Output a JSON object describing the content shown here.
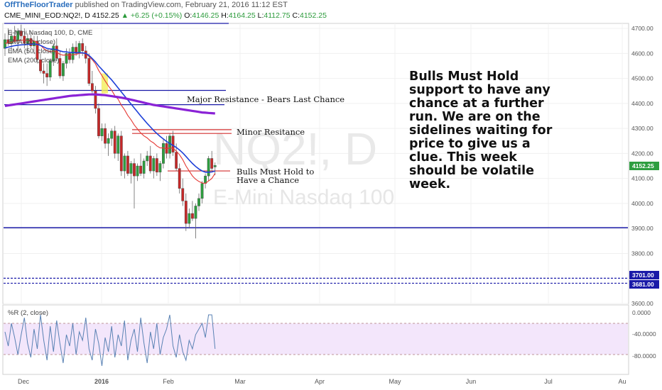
{
  "header": {
    "author": "OffTheFloorTrader",
    "published_text": "published on TradingView.com, February 21, 2016 11:12 EST"
  },
  "symbol_bar": {
    "symbol": "CME_MINI_EOD:NQ2!, D",
    "last": "4152.25",
    "change": "+6.25 (+0.15%)",
    "open_label": "O:",
    "open": "4146.25",
    "high_label": "H:",
    "high": "4164.25",
    "low_label": "L:",
    "low": "4112.75",
    "close_label": "C:",
    "close": "4152.25"
  },
  "legend": {
    "title": "E-Mini Nasdaq 100, D, CME",
    "items": [
      "EMA (20, close)",
      "EMA (50, close)",
      "EMA (200, close)"
    ]
  },
  "watermark": {
    "symbol": "NQ2!, D",
    "name": "E-Mini Nasdaq 100"
  },
  "annotations": {
    "major_resistance": "Major Resistance - Bears  Last Chance",
    "minor_resistance": "Minor Resitance",
    "bulls_line1": "Bulls Must Hold to",
    "bulls_line2": "Have a Chance",
    "big_text": [
      "Bulls Must Hold",
      "support to have any",
      "chance at a further",
      "run.  We are on the",
      "sidelines waiting for",
      "price to give us a",
      "clue.  This week",
      "should be volatile",
      "week."
    ]
  },
  "price_tags": {
    "last": "4152.25",
    "level1": "3701.00",
    "level2": "3681.00"
  },
  "indicator": {
    "label": "%R (2, close)",
    "ticks": [
      "0.0000",
      "-40.0000",
      "-80.0000"
    ]
  },
  "colors": {
    "bull": "#2e9e40",
    "bear": "#c62828",
    "ema20": "#e53935",
    "ema50": "#1e40d8",
    "ema200": "#8a22d6",
    "hline": "#1a1aa8",
    "resist": "#d32f2f",
    "wr_fill": "#f3e6fb",
    "wr_line": "#5a82b4"
  },
  "chart_data": {
    "type": "candlestick",
    "y_ticks": [
      "4700.00",
      "4600.00",
      "4500.00",
      "4400.00",
      "4300.00",
      "4200.00",
      "4100.00",
      "4000.00",
      "3900.00",
      "3800.00",
      "3600.00"
    ],
    "y_tick_values": [
      4700,
      4600,
      4500,
      4400,
      4300,
      4200,
      4100,
      4000,
      3900,
      3800,
      3600
    ],
    "x_ticks": [
      "Dec",
      "2016",
      "Feb",
      "Mar",
      "Apr",
      "May",
      "Jun",
      "Jul",
      "Au"
    ],
    "ylim": [
      3600,
      4720
    ],
    "n_slots": 274,
    "candles": [
      {
        "o": 4620,
        "h": 4680,
        "l": 4590,
        "c": 4655
      },
      {
        "o": 4655,
        "h": 4700,
        "l": 4630,
        "c": 4640
      },
      {
        "o": 4640,
        "h": 4690,
        "l": 4600,
        "c": 4670
      },
      {
        "o": 4670,
        "h": 4710,
        "l": 4640,
        "c": 4650
      },
      {
        "o": 4650,
        "h": 4700,
        "l": 4610,
        "c": 4690
      },
      {
        "o": 4690,
        "h": 4715,
        "l": 4650,
        "c": 4670
      },
      {
        "o": 4670,
        "h": 4700,
        "l": 4620,
        "c": 4640
      },
      {
        "o": 4640,
        "h": 4680,
        "l": 4600,
        "c": 4660
      },
      {
        "o": 4660,
        "h": 4690,
        "l": 4620,
        "c": 4630
      },
      {
        "o": 4630,
        "h": 4670,
        "l": 4600,
        "c": 4650
      },
      {
        "o": 4650,
        "h": 4670,
        "l": 4560,
        "c": 4575
      },
      {
        "o": 4575,
        "h": 4600,
        "l": 4520,
        "c": 4530
      },
      {
        "o": 4530,
        "h": 4560,
        "l": 4480,
        "c": 4520
      },
      {
        "o": 4520,
        "h": 4560,
        "l": 4470,
        "c": 4505
      },
      {
        "o": 4505,
        "h": 4580,
        "l": 4490,
        "c": 4570
      },
      {
        "o": 4570,
        "h": 4640,
        "l": 4550,
        "c": 4630
      },
      {
        "o": 4630,
        "h": 4660,
        "l": 4570,
        "c": 4580
      },
      {
        "o": 4580,
        "h": 4610,
        "l": 4500,
        "c": 4510
      },
      {
        "o": 4510,
        "h": 4570,
        "l": 4490,
        "c": 4560
      },
      {
        "o": 4560,
        "h": 4620,
        "l": 4540,
        "c": 4600
      },
      {
        "o": 4600,
        "h": 4620,
        "l": 4560,
        "c": 4575
      },
      {
        "o": 4575,
        "h": 4640,
        "l": 4560,
        "c": 4625
      },
      {
        "o": 4625,
        "h": 4650,
        "l": 4590,
        "c": 4600
      },
      {
        "o": 4600,
        "h": 4650,
        "l": 4580,
        "c": 4640
      },
      {
        "o": 4640,
        "h": 4660,
        "l": 4590,
        "c": 4610
      },
      {
        "o": 4610,
        "h": 4630,
        "l": 4560,
        "c": 4580
      },
      {
        "o": 4580,
        "h": 4600,
        "l": 4470,
        "c": 4480
      },
      {
        "o": 4480,
        "h": 4530,
        "l": 4440,
        "c": 4450
      },
      {
        "o": 4450,
        "h": 4470,
        "l": 4360,
        "c": 4380
      },
      {
        "o": 4380,
        "h": 4400,
        "l": 4260,
        "c": 4270
      },
      {
        "o": 4270,
        "h": 4320,
        "l": 4250,
        "c": 4300
      },
      {
        "o": 4300,
        "h": 4320,
        "l": 4220,
        "c": 4240
      },
      {
        "o": 4240,
        "h": 4280,
        "l": 4190,
        "c": 4260
      },
      {
        "o": 4260,
        "h": 4300,
        "l": 4230,
        "c": 4290
      },
      {
        "o": 4290,
        "h": 4310,
        "l": 4180,
        "c": 4200
      },
      {
        "o": 4200,
        "h": 4280,
        "l": 4170,
        "c": 4270
      },
      {
        "o": 4270,
        "h": 4290,
        "l": 4110,
        "c": 4130
      },
      {
        "o": 4130,
        "h": 4200,
        "l": 4100,
        "c": 4190
      },
      {
        "o": 4190,
        "h": 4210,
        "l": 4110,
        "c": 4120
      },
      {
        "o": 4120,
        "h": 4170,
        "l": 4080,
        "c": 4160
      },
      {
        "o": 4160,
        "h": 4180,
        "l": 3980,
        "c": 4110
      },
      {
        "o": 4110,
        "h": 4160,
        "l": 4090,
        "c": 4150
      },
      {
        "o": 4150,
        "h": 4200,
        "l": 4110,
        "c": 4120
      },
      {
        "o": 4120,
        "h": 4180,
        "l": 4100,
        "c": 4170
      },
      {
        "o": 4170,
        "h": 4210,
        "l": 4150,
        "c": 4190
      },
      {
        "o": 4190,
        "h": 4230,
        "l": 4120,
        "c": 4130
      },
      {
        "o": 4130,
        "h": 4190,
        "l": 4100,
        "c": 4180
      },
      {
        "o": 4180,
        "h": 4200,
        "l": 4110,
        "c": 4125
      },
      {
        "o": 4125,
        "h": 4170,
        "l": 4090,
        "c": 4160
      },
      {
        "o": 4160,
        "h": 4260,
        "l": 4140,
        "c": 4240
      },
      {
        "o": 4240,
        "h": 4270,
        "l": 4180,
        "c": 4200
      },
      {
        "o": 4200,
        "h": 4280,
        "l": 4180,
        "c": 4270
      },
      {
        "o": 4270,
        "h": 4290,
        "l": 4190,
        "c": 4205
      },
      {
        "o": 4205,
        "h": 4240,
        "l": 4130,
        "c": 4140
      },
      {
        "o": 4140,
        "h": 4160,
        "l": 4040,
        "c": 4060
      },
      {
        "o": 4060,
        "h": 4100,
        "l": 3990,
        "c": 4010
      },
      {
        "o": 4010,
        "h": 4040,
        "l": 3890,
        "c": 3920
      },
      {
        "o": 3920,
        "h": 3980,
        "l": 3900,
        "c": 3960
      },
      {
        "o": 3960,
        "h": 4010,
        "l": 3930,
        "c": 3940
      },
      {
        "o": 3940,
        "h": 4000,
        "l": 3860,
        "c": 3990
      },
      {
        "o": 3990,
        "h": 4040,
        "l": 3970,
        "c": 4020
      },
      {
        "o": 4020,
        "h": 4090,
        "l": 4000,
        "c": 4080
      },
      {
        "o": 4080,
        "h": 4120,
        "l": 4060,
        "c": 4110
      },
      {
        "o": 4110,
        "h": 4190,
        "l": 4090,
        "c": 4180
      },
      {
        "o": 4180,
        "h": 4210,
        "l": 4130,
        "c": 4140
      },
      {
        "o": 4146,
        "h": 4164,
        "l": 4113,
        "c": 4152
      }
    ],
    "series": [
      {
        "name": "EMA (20, close)",
        "values": [
          4640,
          4642,
          4645,
          4648,
          4652,
          4653,
          4652,
          4652,
          4650,
          4650,
          4642,
          4632,
          4620,
          4610,
          4607,
          4609,
          4606,
          4596,
          4593,
          4594,
          4592,
          4595,
          4596,
          4600,
          4601,
          4599,
          4588,
          4575,
          4558,
          4532,
          4511,
          4490,
          4470,
          4453,
          4431,
          4417,
          4393,
          4375,
          4352,
          4335,
          4314,
          4298,
          4282,
          4270,
          4262,
          4250,
          4242,
          4230,
          4222,
          4222,
          4218,
          4222,
          4220,
          4210,
          4195,
          4175,
          4150,
          4130,
          4110,
          4097,
          4088,
          4082,
          4080,
          4090,
          4100,
          4120
        ]
      },
      {
        "name": "EMA (50, close)",
        "values": [
          4622,
          4625,
          4628,
          4631,
          4633,
          4634,
          4635,
          4636,
          4637,
          4638,
          4636,
          4632,
          4626,
          4620,
          4618,
          4617,
          4615,
          4610,
          4607,
          4606,
          4604,
          4604,
          4603,
          4603,
          4602,
          4600,
          4592,
          4580,
          4566,
          4550,
          4536,
          4522,
          4508,
          4494,
          4478,
          4462,
          4446,
          4430,
          4414,
          4398,
          4382,
          4366,
          4350,
          4335,
          4320,
          4306,
          4292,
          4280,
          4268,
          4258,
          4248,
          4240,
          4232,
          4224,
          4214,
          4202,
          4188,
          4174,
          4160,
          4148,
          4138,
          4130,
          4125,
          4125,
          4126,
          4130
        ]
      },
      {
        "name": "EMA (200, close)",
        "values": [
          4390,
          4392,
          4394,
          4396,
          4398,
          4400,
          4402,
          4404,
          4406,
          4408,
          4410,
          4412,
          4414,
          4416,
          4418,
          4420,
          4422,
          4424,
          4426,
          4428,
          4430,
          4431,
          4432,
          4433,
          4434,
          4435,
          4436,
          4436,
          4436,
          4435,
          4434,
          4433,
          4431,
          4429,
          4427,
          4425,
          4423,
          4421,
          4418,
          4415,
          4412,
          4409,
          4406,
          4403,
          4400,
          4397,
          4394,
          4392,
          4390,
          4388,
          4386,
          4384,
          4382,
          4380,
          4378,
          4376,
          4374,
          4372,
          4370,
          4368,
          4366,
          4364,
          4363,
          4362,
          4361,
          4360
        ]
      }
    ],
    "williams_r": [
      -35,
      -60,
      -20,
      -45,
      -75,
      -40,
      -10,
      -55,
      -80,
      -30,
      -65,
      -5,
      -50,
      -85,
      -25,
      -70,
      -15,
      -55,
      -90,
      -40,
      -60,
      -20,
      -75,
      -35,
      -50,
      -10,
      -65,
      -85,
      -30,
      -55,
      -95,
      -45,
      -70,
      -25,
      -80,
      -40,
      -60,
      -15,
      -85,
      -50,
      -30,
      -70,
      -10,
      -55,
      -90,
      -35,
      -65,
      -20,
      -75,
      -45,
      -30,
      -5,
      -60,
      -80,
      -40,
      -70,
      -85,
      -50,
      -65,
      -40,
      -30,
      -20,
      -45,
      -5,
      -5,
      -65
    ],
    "levels": {
      "major_resistance": 4452,
      "top_line": 4720,
      "ema200_zone": 4395,
      "minor_resistance_1": 4295,
      "minor_resistance_2": 4280,
      "bulls_hold": 4130,
      "support": 3903,
      "dashed_1": 3701,
      "dashed_2": 3681
    }
  }
}
